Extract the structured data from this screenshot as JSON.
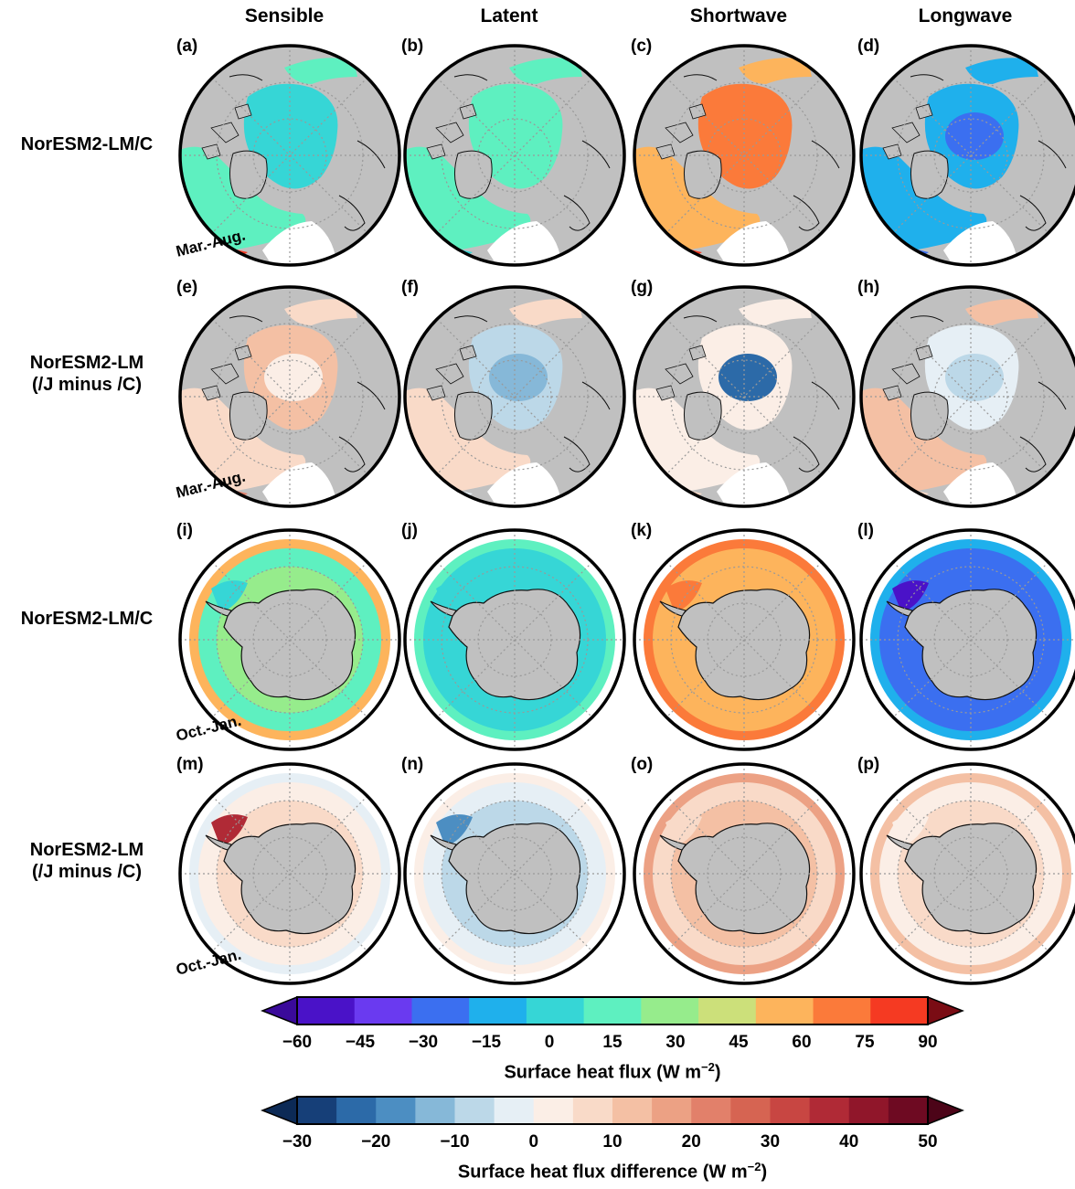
{
  "columns": [
    "Sensible",
    "Latent",
    "Shortwave",
    "Longwave"
  ],
  "rows": [
    {
      "label_line1": "NorESM2-LM/C",
      "label_line2": "",
      "season": "Mar.-Aug.",
      "hemisphere": "north",
      "kind": "abs",
      "panels": [
        "(a)",
        "(b)",
        "(c)",
        "(d)"
      ]
    },
    {
      "label_line1": "NorESM2-LM",
      "label_line2": "(/J minus /C)",
      "season": "Mar.-Aug.",
      "hemisphere": "north",
      "kind": "diff",
      "panels": [
        "(e)",
        "(f)",
        "(g)",
        "(h)"
      ]
    },
    {
      "label_line1": "NorESM2-LM/C",
      "label_line2": "",
      "season": "Oct.-Jan.",
      "hemisphere": "south",
      "kind": "abs",
      "panels": [
        "(i)",
        "(j)",
        "(k)",
        "(l)"
      ]
    },
    {
      "label_line1": "NorESM2-LM",
      "label_line2": "(/J minus /C)",
      "season": "Oct.-Jan.",
      "hemisphere": "south",
      "kind": "diff",
      "panels": [
        "(m)",
        "(n)",
        "(o)",
        "(p)"
      ]
    }
  ],
  "colorbar_flux": {
    "title": "Surface heat flux (W m",
    "title_exp": "−2",
    "title_end": ")",
    "ticks": [
      "−60",
      "−45",
      "−30",
      "−15",
      "0",
      "15",
      "30",
      "45",
      "60",
      "75",
      "90"
    ],
    "colors": [
      "#4a12c8",
      "#6a3af0",
      "#3b6ff0",
      "#1fb0ec",
      "#36d6d6",
      "#5ef0c0",
      "#96ec8c",
      "#cce07a",
      "#fdb45c",
      "#fb7a3a",
      "#f53a22"
    ],
    "under_color": "#3a0a9a",
    "over_color": "#7a0c14"
  },
  "colorbar_diff": {
    "title": "Surface heat flux difference (W m",
    "title_exp": "−2",
    "title_end": ")",
    "ticks": [
      "−30",
      "−20",
      "−10",
      "0",
      "10",
      "20",
      "30",
      "40",
      "50"
    ],
    "colors": [
      "#163f78",
      "#2c6aa8",
      "#4c8ec2",
      "#86b8d8",
      "#bcd8e8",
      "#e6eff5",
      "#fbeee6",
      "#f9dac8",
      "#f4c0a4",
      "#eca184",
      "#e2806a",
      "#d66452",
      "#c84642",
      "#b02a36",
      "#90162a",
      "#6e0a22"
    ],
    "under_color": "#0c2a56",
    "over_color": "#4c0418"
  },
  "fields": {
    "north_abs": [
      {
        "ocean": "#36d6d6",
        "center": "#36d6d6",
        "edge": "#f53a22",
        "atl": "#5ef0c0"
      },
      {
        "ocean": "#5ef0c0",
        "center": "#5ef0c0",
        "edge": "#36d6d6",
        "atl": "#5ef0c0"
      },
      {
        "ocean": "#fb7a3a",
        "center": "#fb7a3a",
        "edge": "#f53a22",
        "atl": "#fdb45c"
      },
      {
        "ocean": "#1fb0ec",
        "center": "#3b6ff0",
        "edge": "#3b6ff0",
        "atl": "#1fb0ec"
      }
    ],
    "north_diff": [
      {
        "ocean": "#f4c0a4",
        "center": "#fbeee6",
        "edge": "#e2806a",
        "atl": "#f9dac8"
      },
      {
        "ocean": "#bcd8e8",
        "center": "#86b8d8",
        "edge": "#e6eff5",
        "atl": "#f9dac8"
      },
      {
        "ocean": "#fbeee6",
        "center": "#2c6aa8",
        "edge": "#f9dac8",
        "atl": "#fbeee6"
      },
      {
        "ocean": "#e6eff5",
        "center": "#bcd8e8",
        "edge": "#f9dac8",
        "atl": "#f4c0a4"
      }
    ],
    "south_abs": [
      {
        "ocean": "#5ef0c0",
        "center": "#96ec8c",
        "edge": "#fdb45c",
        "atl": "#36d6d6"
      },
      {
        "ocean": "#36d6d6",
        "center": "#36d6d6",
        "edge": "#5ef0c0",
        "atl": "#36d6d6"
      },
      {
        "ocean": "#fdb45c",
        "center": "#fdb45c",
        "edge": "#fb7a3a",
        "atl": "#fb7a3a"
      },
      {
        "ocean": "#3b6ff0",
        "center": "#3b6ff0",
        "edge": "#1fb0ec",
        "atl": "#4a12c8"
      }
    ],
    "south_diff": [
      {
        "ocean": "#fbeee6",
        "center": "#f9dac8",
        "edge": "#e6eff5",
        "atl": "#b02a36"
      },
      {
        "ocean": "#e6eff5",
        "center": "#bcd8e8",
        "edge": "#fbeee6",
        "atl": "#4c8ec2"
      },
      {
        "ocean": "#f9dac8",
        "center": "#f4c0a4",
        "edge": "#eca184",
        "atl": "#f9dac8"
      },
      {
        "ocean": "#fbeee6",
        "center": "#f9dac8",
        "edge": "#f4c0a4",
        "atl": "#fbeee6"
      }
    ]
  }
}
